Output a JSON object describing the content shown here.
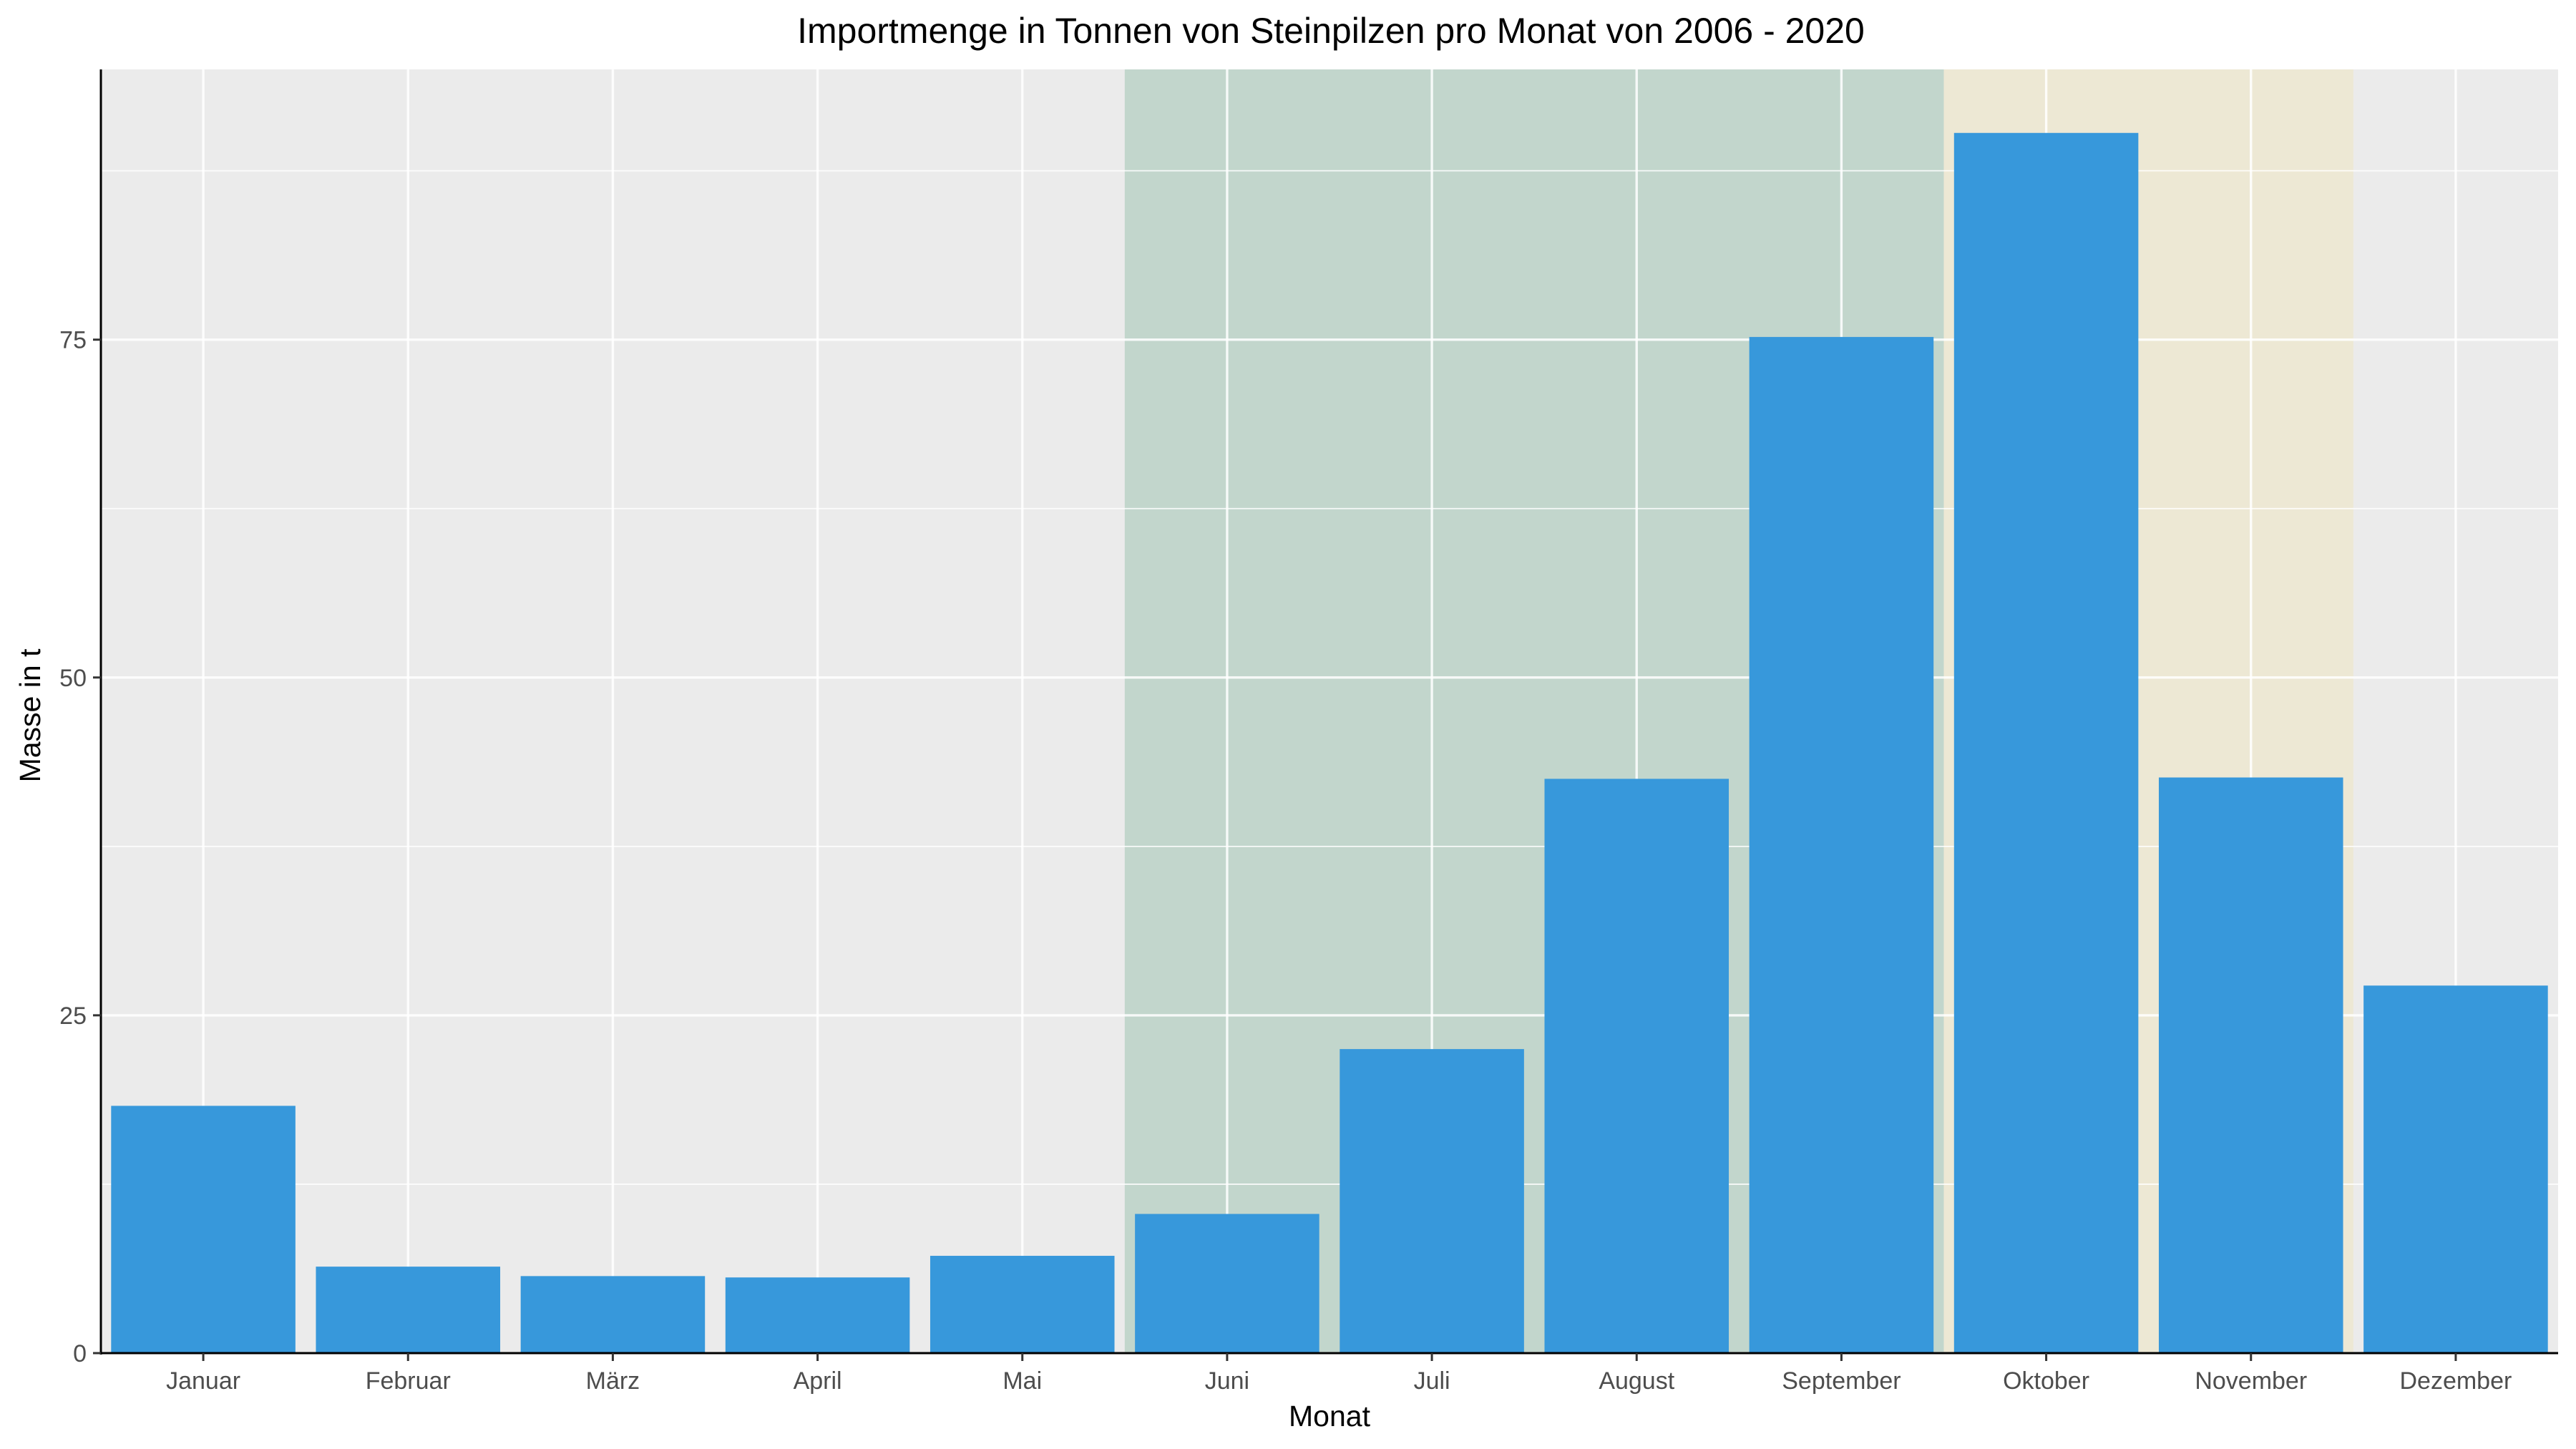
{
  "chart_data": {
    "type": "bar",
    "title": "Importmenge in Tonnen von Steinpilzen pro Monat von 2006 - 2020",
    "xlabel": "Monat",
    "ylabel": "Masse in t",
    "categories": [
      "Januar",
      "Februar",
      "März",
      "April",
      "Mai",
      "Juni",
      "Juli",
      "August",
      "September",
      "Oktober",
      "November",
      "Dezember"
    ],
    "values": [
      18.3,
      6.4,
      5.7,
      5.6,
      7.2,
      10.3,
      22.5,
      42.5,
      75.2,
      90.3,
      42.6,
      27.2
    ],
    "ylim": [
      0,
      95
    ],
    "yticks": [
      0,
      25,
      50,
      75
    ],
    "bar_color": "#3798db",
    "panel_background": "#ebebeb",
    "grid": true,
    "highlight_regions": [
      {
        "from_category": "Juni",
        "to_category": "September",
        "color": "#c2d6cc"
      },
      {
        "from_category": "Oktober",
        "to_category": "November",
        "color": "#ede8d4"
      }
    ]
  }
}
